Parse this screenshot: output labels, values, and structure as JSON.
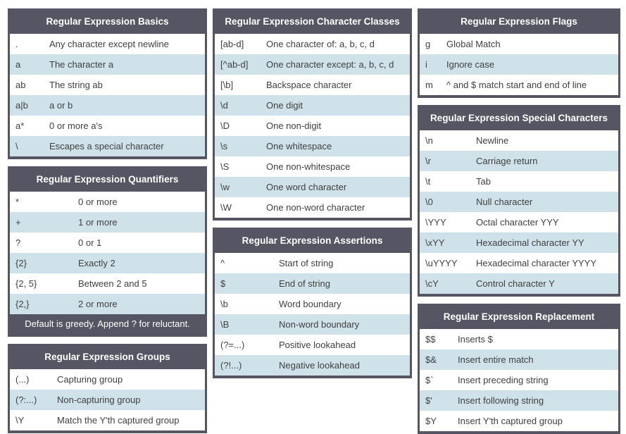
{
  "theme": {
    "header_bg": "#555564",
    "header_text": "#ffffff",
    "row_bg": "#ffffff",
    "row_alt_bg": "#cfe1e9",
    "row_text": "#3f3f3f",
    "border": "#555564",
    "page_bg": "#ffffff"
  },
  "columns": [
    {
      "cards": [
        {
          "title": "Regular Expression Basics",
          "rows": [
            {
              "pattern": ".",
              "description": "Any character except newline"
            },
            {
              "pattern": "a",
              "description": "The character a"
            },
            {
              "pattern": "ab",
              "description": "The string ab"
            },
            {
              "pattern": "a|b",
              "description": "a or b"
            },
            {
              "pattern": "a*",
              "description": "0 or more a's"
            },
            {
              "pattern": "\\",
              "description": "Escapes a special character"
            }
          ]
        },
        {
          "title": "Regular Expression Quantifiers",
          "rows": [
            {
              "pattern": "*",
              "description": "0 or more"
            },
            {
              "pattern": "+",
              "description": "1 or more"
            },
            {
              "pattern": "?",
              "description": "0 or 1"
            },
            {
              "pattern": "{2}",
              "description": "Exactly 2"
            },
            {
              "pattern": "{2, 5}",
              "description": "Between 2 and 5"
            },
            {
              "pattern": "{2,}",
              "description": "2 or more"
            }
          ],
          "footer": "Default is greedy. Append ? for reluctant."
        },
        {
          "title": "Regular Expression Groups",
          "rows": [
            {
              "pattern": "(...)",
              "description": "Capturing group"
            },
            {
              "pattern": "(?:...)",
              "description": "Non-capturing group"
            },
            {
              "pattern": "\\Y",
              "description": "Match the Y'th captured group"
            }
          ]
        }
      ]
    },
    {
      "cards": [
        {
          "title": "Regular Expression Character Classes",
          "rows": [
            {
              "pattern": "[ab-d]",
              "description": "One character of: a, b, c, d"
            },
            {
              "pattern": "[^ab-d]",
              "description": "One character except: a, b, c, d"
            },
            {
              "pattern": "[\\b]",
              "description": "Backspace character"
            },
            {
              "pattern": "\\d",
              "description": "One digit"
            },
            {
              "pattern": "\\D",
              "description": "One non-digit"
            },
            {
              "pattern": "\\s",
              "description": "One whitespace"
            },
            {
              "pattern": "\\S",
              "description": "One non-whitespace"
            },
            {
              "pattern": "\\w",
              "description": "One word character"
            },
            {
              "pattern": "\\W",
              "description": "One non-word character"
            }
          ]
        },
        {
          "title": "Regular Expression Assertions",
          "rows": [
            {
              "pattern": "^",
              "description": "Start of string"
            },
            {
              "pattern": "$",
              "description": "End of string"
            },
            {
              "pattern": "\\b",
              "description": "Word boundary"
            },
            {
              "pattern": "\\B",
              "description": "Non-word boundary"
            },
            {
              "pattern": "(?=...)",
              "description": "Positive lookahead"
            },
            {
              "pattern": "(?!...)",
              "description": "Negative lookahead"
            }
          ]
        }
      ]
    },
    {
      "cards": [
        {
          "title": "Regular Expression Flags",
          "rows": [
            {
              "pattern": "g",
              "description": "Global Match"
            },
            {
              "pattern": "i",
              "description": "Ignore case"
            },
            {
              "pattern": "m",
              "description": "^ and $ match start and end of line"
            }
          ]
        },
        {
          "title": "Regular Expression Special Characters",
          "rows": [
            {
              "pattern": "\\n",
              "description": "Newline"
            },
            {
              "pattern": "\\r",
              "description": "Carriage return"
            },
            {
              "pattern": "\\t",
              "description": "Tab"
            },
            {
              "pattern": "\\0",
              "description": "Null character"
            },
            {
              "pattern": "\\YYY",
              "description": "Octal character YYY"
            },
            {
              "pattern": "\\xYY",
              "description": "Hexadecimal character YY"
            },
            {
              "pattern": "\\uYYYY",
              "description": "Hexadecimal character YYYY"
            },
            {
              "pattern": "\\cY",
              "description": "Control character Y"
            }
          ]
        },
        {
          "title": "Regular Expression Replacement",
          "rows": [
            {
              "pattern": "$$",
              "description": "Inserts $"
            },
            {
              "pattern": "$&",
              "description": "Insert entire match"
            },
            {
              "pattern": "$`",
              "description": "Insert preceding string"
            },
            {
              "pattern": "$'",
              "description": "Insert following string"
            },
            {
              "pattern": "$Y",
              "description": "Insert Y'th captured group"
            }
          ]
        }
      ]
    }
  ]
}
